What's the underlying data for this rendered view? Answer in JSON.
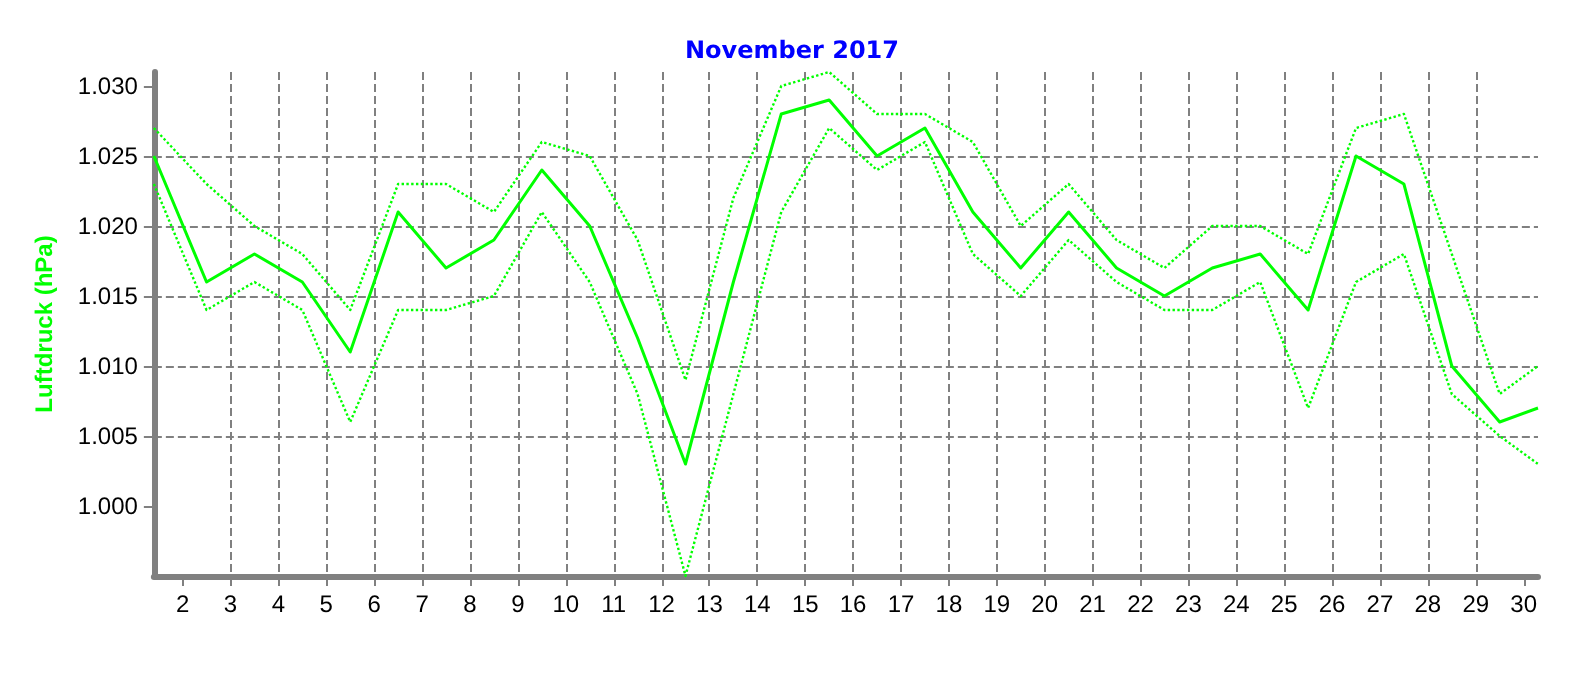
{
  "chart_data": {
    "type": "line",
    "title": "November 2017",
    "ylabel": "Luftdruck (hPa)",
    "x": [
      1.4,
      2.5,
      3.5,
      4.5,
      5.5,
      6.5,
      7.5,
      8.5,
      9.5,
      10.5,
      11.5,
      12.5,
      13.5,
      14.5,
      15.5,
      16.5,
      17.5,
      18.5,
      19.5,
      20.5,
      21.5,
      22.5,
      23.5,
      24.5,
      25.5,
      26.5,
      27.5,
      28.5,
      29.5,
      30.3
    ],
    "series": [
      {
        "color": "#00ff00",
        "line_style": "solid",
        "values": [
          1.025,
          1.016,
          1.018,
          1.016,
          1.011,
          1.021,
          1.017,
          1.019,
          1.024,
          1.02,
          1.012,
          1.003,
          1.016,
          1.028,
          1.029,
          1.025,
          1.027,
          1.021,
          1.017,
          1.021,
          1.017,
          1.015,
          1.017,
          1.018,
          1.014,
          1.025,
          1.023,
          1.01,
          1.006,
          1.007
        ]
      },
      {
        "color": "#00ff00",
        "line_style": "dotted",
        "values": [
          1.027,
          1.023,
          1.02,
          1.018,
          1.014,
          1.023,
          1.023,
          1.021,
          1.026,
          1.025,
          1.019,
          1.009,
          1.022,
          1.03,
          1.031,
          1.028,
          1.028,
          1.026,
          1.02,
          1.023,
          1.019,
          1.017,
          1.02,
          1.02,
          1.018,
          1.027,
          1.028,
          1.018,
          1.008,
          1.01
        ]
      },
      {
        "color": "#00ff00",
        "line_style": "dotted",
        "values": [
          1.023,
          1.014,
          1.016,
          1.014,
          1.006,
          1.014,
          1.014,
          1.015,
          1.021,
          1.016,
          1.008,
          0.995,
          1.008,
          1.021,
          1.027,
          1.024,
          1.026,
          1.018,
          1.015,
          1.019,
          1.016,
          1.014,
          1.014,
          1.016,
          1.007,
          1.016,
          1.018,
          1.008,
          1.005,
          1.003
        ]
      }
    ],
    "xlim": [
      1.4,
      30.3
    ],
    "xticks": [
      2,
      3,
      4,
      5,
      6,
      7,
      8,
      9,
      10,
      11,
      12,
      13,
      14,
      15,
      16,
      17,
      18,
      19,
      20,
      21,
      22,
      23,
      24,
      25,
      26,
      27,
      28,
      29,
      30
    ],
    "ylim": [
      0.995,
      1.031
    ],
    "yticks": [
      {
        "value": 1.0,
        "label": "1.000"
      },
      {
        "value": 1.005,
        "label": "1.005"
      },
      {
        "value": 1.01,
        "label": "1.010"
      },
      {
        "value": 1.015,
        "label": "1.015"
      },
      {
        "value": 1.02,
        "label": "1.020"
      },
      {
        "value": 1.025,
        "label": "1.025"
      },
      {
        "value": 1.03,
        "label": "1.030"
      }
    ],
    "grid": true
  }
}
